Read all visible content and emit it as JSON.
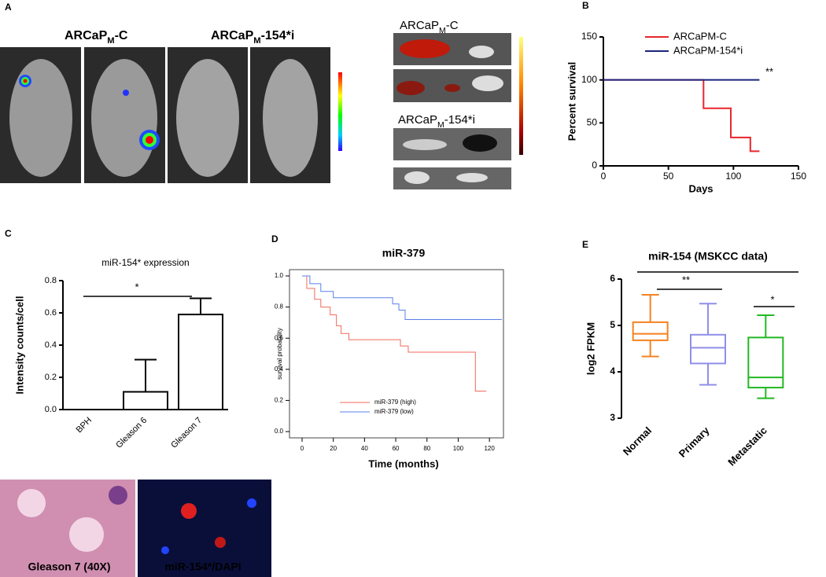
{
  "panel_a": {
    "panel_label": "A",
    "xray_labels": [
      [
        "ARCaP",
        "M",
        "-C"
      ],
      [
        "ARCaP",
        "M",
        "-154*i"
      ]
    ],
    "organ_labels": [
      [
        "ARCaP",
        "M",
        "-C"
      ],
      [
        "ARCaP",
        "M",
        "-154*i"
      ]
    ]
  },
  "panel_c_images": {
    "labels": [
      "Gleason 7 (40X)",
      "miR-154*/DAPI"
    ]
  },
  "chart_data": [
    {
      "panel_label": "B",
      "type": "step",
      "x_label": "Days",
      "y_label": "Percent survival",
      "xlim": [
        0,
        150
      ],
      "xticks": [
        0,
        50,
        100,
        150
      ],
      "ylim": [
        0,
        150
      ],
      "yticks": [
        0,
        50,
        100,
        150
      ],
      "legend": "upper right",
      "annotations": [
        "**"
      ],
      "series": [
        {
          "name": "ARCaPM-C",
          "color": "#e8262b",
          "x": [
            0,
            77,
            98,
            113,
            120
          ],
          "values": [
            100,
            67,
            33,
            17,
            17
          ]
        },
        {
          "name": "ARCaPM-154*i",
          "color": "#1a237e",
          "x": [
            0,
            120
          ],
          "values": [
            100,
            100
          ]
        }
      ]
    },
    {
      "panel_label": "C",
      "type": "bar",
      "title": "miR-154* expression",
      "y_label": "Intensity counts/cell",
      "categories": [
        "BPH",
        "Gleason 6",
        "Gleason 7"
      ],
      "values": [
        0,
        0.11,
        0.59
      ],
      "errors": [
        0,
        0.2,
        0.1
      ],
      "color": "#000000",
      "ylim": [
        0,
        0.8
      ],
      "yticks": [
        {
          "value": 0,
          "label": "0.0"
        },
        0.2,
        0.4,
        0.6,
        0.8
      ],
      "annotations": [
        "*"
      ]
    },
    {
      "panel_label": "D",
      "type": "step",
      "title": "miR-379",
      "x_label": "Time (months)",
      "y_label": "survival probability",
      "xlim": [
        0,
        130
      ],
      "xticks": [
        0,
        20,
        40,
        60,
        80,
        100,
        120
      ],
      "ylim": [
        0,
        1
      ],
      "yticks": [
        {
          "value": 0,
          "label": "0.0"
        },
        0.2,
        0.4,
        0.6,
        0.8,
        {
          "value": 1,
          "label": "1.0"
        }
      ],
      "legend": "lower left",
      "frame": true,
      "series": [
        {
          "name": "miR-379 (high)",
          "color": "#f06a5a",
          "x": [
            0,
            3,
            8,
            12,
            18,
            22,
            25,
            30,
            63,
            68,
            111,
            118
          ],
          "values": [
            1,
            0.92,
            0.85,
            0.8,
            0.75,
            0.68,
            0.63,
            0.59,
            0.55,
            0.51,
            0.26,
            0.26
          ]
        },
        {
          "name": "miR-379 (low)",
          "color": "#5b7fe8",
          "x": [
            0,
            5,
            12,
            20,
            58,
            62,
            66,
            128
          ],
          "values": [
            1,
            0.95,
            0.9,
            0.86,
            0.82,
            0.78,
            0.72,
            0.72
          ]
        }
      ]
    },
    {
      "panel_label": "E",
      "type": "box",
      "title": "miR-154 (MSKCC data)",
      "y_label": "log2 FPKM",
      "categories": [
        "Normal",
        "Primary",
        "Metastatic"
      ],
      "colors": [
        "#f58220",
        "#8f8fe8",
        "#22b822"
      ],
      "boxes": [
        {
          "min": 4.33,
          "q1": 4.68,
          "median": 4.82,
          "q3": 5.07,
          "max": 5.66
        },
        {
          "min": 3.72,
          "q1": 4.18,
          "median": 4.52,
          "q3": 4.8,
          "max": 5.47
        },
        {
          "min": 3.43,
          "q1": 3.66,
          "median": 3.88,
          "q3": 4.74,
          "max": 5.22
        }
      ],
      "ylim": [
        3,
        6
      ],
      "yticks": [
        3,
        4,
        5,
        6
      ],
      "annotations": [
        "**",
        "*"
      ]
    }
  ]
}
